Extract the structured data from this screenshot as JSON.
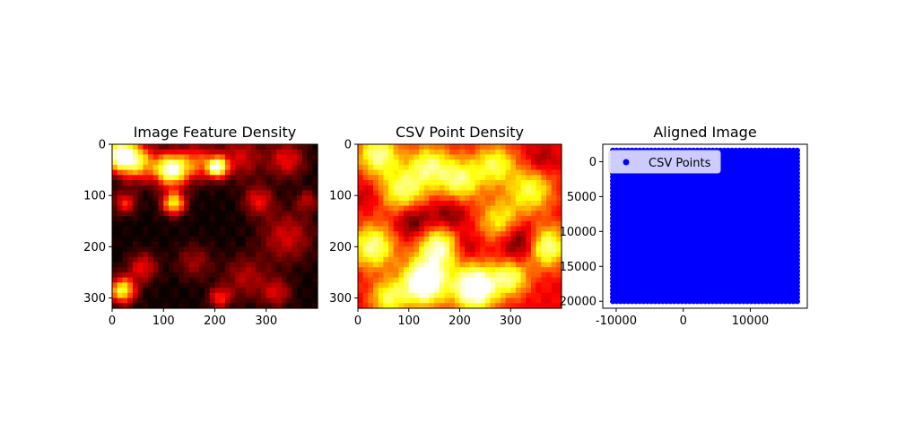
{
  "chart_data": [
    {
      "type": "heatmap",
      "title": "Image Feature Density",
      "xlabel": "",
      "ylabel": "",
      "colormap": "hot",
      "xlim": [
        0,
        400
      ],
      "ylim": [
        320,
        0
      ],
      "xticks": [
        0,
        100,
        200,
        300
      ],
      "yticks": [
        0,
        100,
        200,
        300
      ],
      "blobs": [
        {
          "x": 15,
          "y": 20,
          "r": 22,
          "v": 0.95
        },
        {
          "x": 50,
          "y": 35,
          "r": 26,
          "v": 0.65
        },
        {
          "x": 115,
          "y": 50,
          "r": 22,
          "v": 1.0
        },
        {
          "x": 165,
          "y": 35,
          "r": 25,
          "v": 0.45
        },
        {
          "x": 205,
          "y": 45,
          "r": 14,
          "v": 0.9
        },
        {
          "x": 250,
          "y": 25,
          "r": 30,
          "v": 0.3
        },
        {
          "x": 340,
          "y": 30,
          "r": 25,
          "v": 0.35
        },
        {
          "x": 25,
          "y": 115,
          "r": 15,
          "v": 0.4
        },
        {
          "x": 120,
          "y": 115,
          "r": 16,
          "v": 0.75
        },
        {
          "x": 285,
          "y": 110,
          "r": 20,
          "v": 0.35
        },
        {
          "x": 340,
          "y": 180,
          "r": 35,
          "v": 0.3
        },
        {
          "x": 60,
          "y": 240,
          "r": 20,
          "v": 0.35
        },
        {
          "x": 160,
          "y": 230,
          "r": 24,
          "v": 0.22
        },
        {
          "x": 260,
          "y": 260,
          "r": 30,
          "v": 0.25
        },
        {
          "x": 20,
          "y": 285,
          "r": 18,
          "v": 0.8
        },
        {
          "x": 210,
          "y": 300,
          "r": 15,
          "v": 0.4
        },
        {
          "x": 320,
          "y": 290,
          "r": 20,
          "v": 0.3
        },
        {
          "x": 380,
          "y": 110,
          "r": 15,
          "v": 0.25
        }
      ]
    },
    {
      "type": "heatmap",
      "title": "CSV Point Density",
      "xlabel": "",
      "ylabel": "",
      "colormap": "hot",
      "xlim": [
        0,
        400
      ],
      "ylim": [
        320,
        0
      ],
      "xticks": [
        0,
        100,
        200,
        300
      ],
      "yticks": [
        0,
        100,
        200,
        300
      ],
      "base": 0.35,
      "blobs": [
        {
          "x": 40,
          "y": 20,
          "r": 28,
          "v": 0.55
        },
        {
          "x": 90,
          "y": 90,
          "r": 32,
          "v": 0.5
        },
        {
          "x": 140,
          "y": 40,
          "r": 28,
          "v": 0.45
        },
        {
          "x": 200,
          "y": 70,
          "r": 30,
          "v": 0.5
        },
        {
          "x": 270,
          "y": 40,
          "r": 28,
          "v": 0.45
        },
        {
          "x": 340,
          "y": 90,
          "r": 30,
          "v": 0.45
        },
        {
          "x": 370,
          "y": 200,
          "r": 28,
          "v": 0.6
        },
        {
          "x": 30,
          "y": 200,
          "r": 30,
          "v": 0.55
        },
        {
          "x": 130,
          "y": 270,
          "r": 30,
          "v": 0.85
        },
        {
          "x": 160,
          "y": 200,
          "r": 30,
          "v": 0.6
        },
        {
          "x": 230,
          "y": 280,
          "r": 30,
          "v": 0.85
        },
        {
          "x": 300,
          "y": 260,
          "r": 25,
          "v": 0.5
        },
        {
          "x": 60,
          "y": 300,
          "r": 25,
          "v": 0.45
        },
        {
          "x": 280,
          "y": 150,
          "r": 30,
          "v": 0.4
        },
        {
          "x": 180,
          "y": 140,
          "r": 25,
          "v": -0.25
        },
        {
          "x": 320,
          "y": 190,
          "r": 28,
          "v": -0.35
        },
        {
          "x": 110,
          "y": 150,
          "r": 25,
          "v": -0.3
        },
        {
          "x": 360,
          "y": 30,
          "r": 20,
          "v": -0.15
        },
        {
          "x": 20,
          "y": 100,
          "r": 18,
          "v": -0.1
        },
        {
          "x": 210,
          "y": 200,
          "r": 20,
          "v": -0.2
        }
      ]
    },
    {
      "type": "scatter",
      "title": "Aligned Image",
      "xlabel": "",
      "ylabel": "",
      "xlim": [
        -12000,
        18500
      ],
      "ylim": [
        21000,
        -2500
      ],
      "xticks": [
        -10000,
        0,
        10000
      ],
      "yticks": [
        0,
        5000,
        10000,
        15000,
        20000
      ],
      "series": [
        {
          "name": "CSV Points",
          "color": "#0000ff",
          "x_range": [
            -10500,
            17000
          ],
          "y_range": [
            -1600,
            20000
          ]
        }
      ],
      "legend_loc": "upper left"
    }
  ],
  "legend_labels": [
    "CSV Points"
  ]
}
